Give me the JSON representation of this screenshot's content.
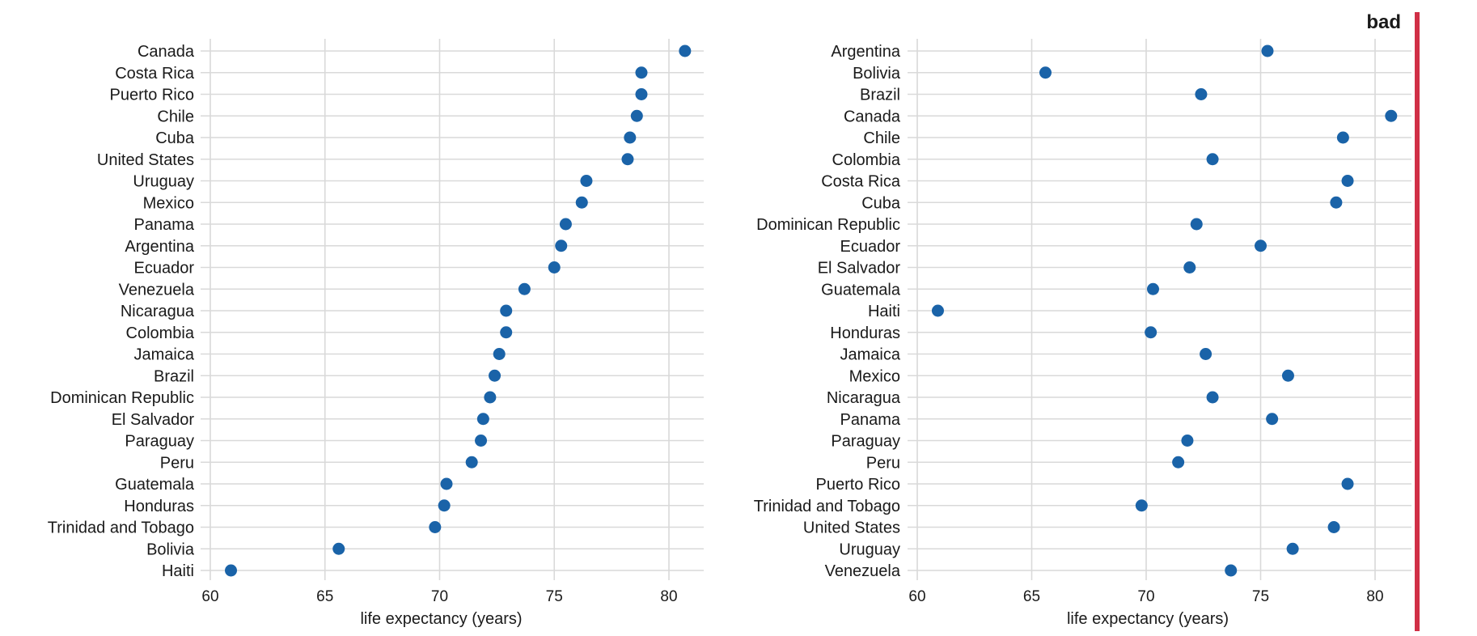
{
  "colors": {
    "point": "#1a63a8",
    "grid": "#d9d9d9",
    "bad": "#d02f46"
  },
  "chart_data": [
    {
      "type": "scatter",
      "title": "",
      "xlabel": "life expectancy (years)",
      "ylabel": "",
      "xlim": [
        60,
        81.5
      ],
      "xticks": [
        60,
        65,
        70,
        75,
        80
      ],
      "grid": true,
      "categories": [
        "Canada",
        "Costa Rica",
        "Puerto Rico",
        "Chile",
        "Cuba",
        "United States",
        "Uruguay",
        "Mexico",
        "Panama",
        "Argentina",
        "Ecuador",
        "Venezuela",
        "Nicaragua",
        "Colombia",
        "Jamaica",
        "Brazil",
        "Dominican Republic",
        "El Salvador",
        "Paraguay",
        "Peru",
        "Guatemala",
        "Honduras",
        "Trinidad and Tobago",
        "Bolivia",
        "Haiti"
      ],
      "values": [
        80.7,
        78.8,
        78.8,
        78.6,
        78.3,
        78.2,
        76.4,
        76.2,
        75.5,
        75.3,
        75.0,
        73.7,
        72.9,
        72.9,
        72.6,
        72.4,
        72.2,
        71.9,
        71.8,
        71.4,
        70.3,
        70.2,
        69.8,
        65.6,
        60.9
      ]
    },
    {
      "type": "scatter",
      "title": "",
      "xlabel": "life expectancy (years)",
      "ylabel": "",
      "xlim": [
        60,
        81.5
      ],
      "xticks": [
        60,
        65,
        70,
        75,
        80
      ],
      "grid": true,
      "annotation": "bad",
      "categories": [
        "Argentina",
        "Bolivia",
        "Brazil",
        "Canada",
        "Chile",
        "Colombia",
        "Costa Rica",
        "Cuba",
        "Dominican Republic",
        "Ecuador",
        "El Salvador",
        "Guatemala",
        "Haiti",
        "Honduras",
        "Jamaica",
        "Mexico",
        "Nicaragua",
        "Panama",
        "Paraguay",
        "Peru",
        "Puerto Rico",
        "Trinidad and Tobago",
        "United States",
        "Uruguay",
        "Venezuela"
      ],
      "values": [
        75.3,
        65.6,
        72.4,
        80.7,
        78.6,
        72.9,
        78.8,
        78.3,
        72.2,
        75.0,
        71.9,
        70.3,
        60.9,
        70.2,
        72.6,
        76.2,
        72.9,
        75.5,
        71.8,
        71.4,
        78.8,
        69.8,
        78.2,
        76.4,
        73.7
      ]
    }
  ]
}
